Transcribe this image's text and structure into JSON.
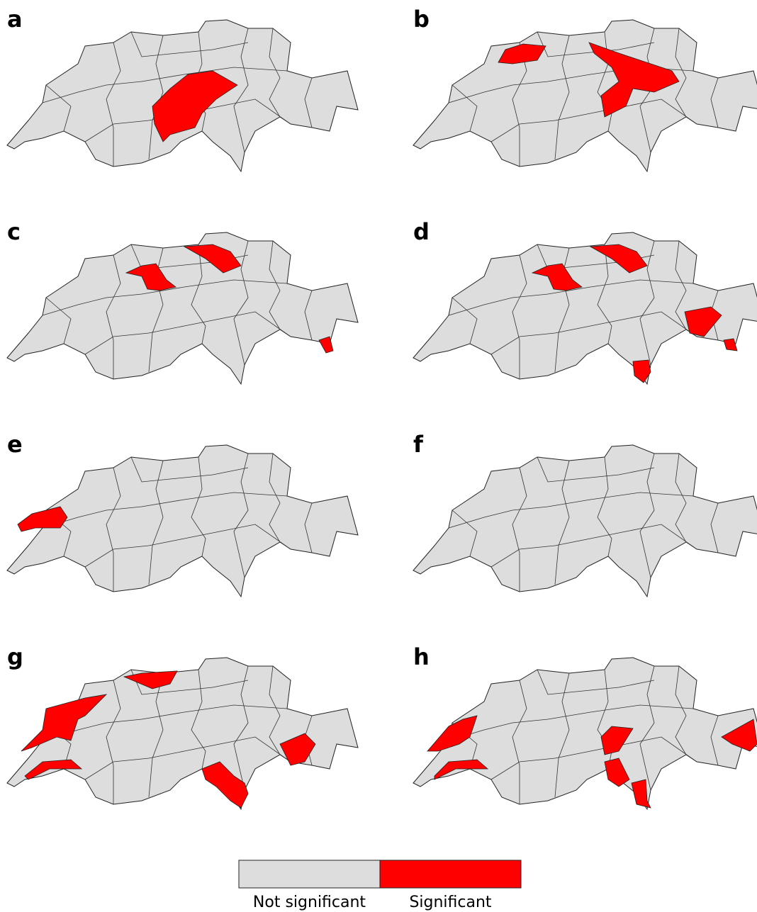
{
  "panels": [
    {
      "label": "a"
    },
    {
      "label": "b"
    },
    {
      "label": "c"
    },
    {
      "label": "d"
    },
    {
      "label": "e"
    },
    {
      "label": "f"
    },
    {
      "label": "g"
    },
    {
      "label": "h"
    }
  ],
  "legend": {
    "items": [
      {
        "label": "Not significant",
        "color": "#dddddd"
      },
      {
        "label": "Significant",
        "color": "#ff0000"
      }
    ]
  }
}
